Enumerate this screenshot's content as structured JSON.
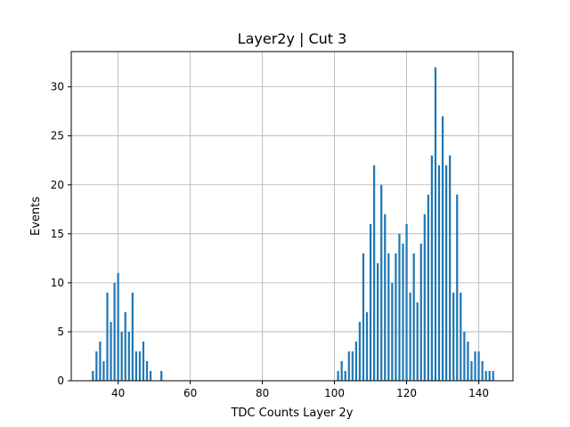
{
  "chart_data": {
    "type": "bar",
    "title": "Layer2y | Cut 3",
    "xlabel": "TDC Counts Layer 2y",
    "ylabel": "Events",
    "xlim": [
      27,
      149.5
    ],
    "ylim": [
      0,
      33.6
    ],
    "xticks": [
      40,
      60,
      80,
      100,
      120,
      140
    ],
    "yticks": [
      0,
      5,
      10,
      15,
      20,
      25,
      30
    ],
    "grid": true,
    "bar_color": "#1f77b4",
    "bars": [
      {
        "x": 33,
        "y": 1
      },
      {
        "x": 34,
        "y": 3
      },
      {
        "x": 35,
        "y": 4
      },
      {
        "x": 36,
        "y": 2
      },
      {
        "x": 37,
        "y": 9
      },
      {
        "x": 38,
        "y": 6
      },
      {
        "x": 39,
        "y": 10
      },
      {
        "x": 40,
        "y": 11
      },
      {
        "x": 41,
        "y": 5
      },
      {
        "x": 42,
        "y": 7
      },
      {
        "x": 43,
        "y": 5
      },
      {
        "x": 44,
        "y": 9
      },
      {
        "x": 45,
        "y": 3
      },
      {
        "x": 46,
        "y": 3
      },
      {
        "x": 47,
        "y": 4
      },
      {
        "x": 48,
        "y": 2
      },
      {
        "x": 49,
        "y": 1
      },
      {
        "x": 52,
        "y": 1
      },
      {
        "x": 101,
        "y": 1
      },
      {
        "x": 102,
        "y": 2
      },
      {
        "x": 103,
        "y": 1
      },
      {
        "x": 104,
        "y": 3
      },
      {
        "x": 105,
        "y": 3
      },
      {
        "x": 106,
        "y": 4
      },
      {
        "x": 107,
        "y": 6
      },
      {
        "x": 108,
        "y": 13
      },
      {
        "x": 109,
        "y": 7
      },
      {
        "x": 110,
        "y": 16
      },
      {
        "x": 111,
        "y": 22
      },
      {
        "x": 112,
        "y": 12
      },
      {
        "x": 113,
        "y": 20
      },
      {
        "x": 114,
        "y": 17
      },
      {
        "x": 115,
        "y": 13
      },
      {
        "x": 116,
        "y": 10
      },
      {
        "x": 117,
        "y": 13
      },
      {
        "x": 118,
        "y": 15
      },
      {
        "x": 119,
        "y": 14
      },
      {
        "x": 120,
        "y": 16
      },
      {
        "x": 121,
        "y": 9
      },
      {
        "x": 122,
        "y": 13
      },
      {
        "x": 123,
        "y": 8
      },
      {
        "x": 124,
        "y": 14
      },
      {
        "x": 125,
        "y": 17
      },
      {
        "x": 126,
        "y": 19
      },
      {
        "x": 127,
        "y": 23
      },
      {
        "x": 128,
        "y": 32
      },
      {
        "x": 129,
        "y": 22
      },
      {
        "x": 130,
        "y": 27
      },
      {
        "x": 131,
        "y": 22
      },
      {
        "x": 132,
        "y": 23
      },
      {
        "x": 133,
        "y": 9
      },
      {
        "x": 134,
        "y": 19
      },
      {
        "x": 135,
        "y": 9
      },
      {
        "x": 136,
        "y": 5
      },
      {
        "x": 137,
        "y": 4
      },
      {
        "x": 138,
        "y": 2
      },
      {
        "x": 139,
        "y": 3
      },
      {
        "x": 140,
        "y": 3
      },
      {
        "x": 141,
        "y": 2
      },
      {
        "x": 142,
        "y": 1
      },
      {
        "x": 143,
        "y": 1
      },
      {
        "x": 144,
        "y": 1
      }
    ]
  }
}
